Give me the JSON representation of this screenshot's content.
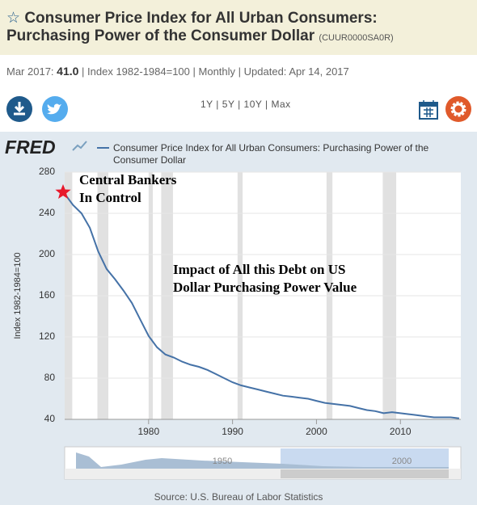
{
  "header": {
    "title": "Consumer Price Index for All Urban Consumers: Purchasing Power of the Consumer Dollar",
    "series_id": "(CUUR0000SA0R)"
  },
  "info": {
    "date": "Mar 2017:",
    "value": "41.0",
    "units": "Index 1982-1984=100",
    "frequency": "Monthly",
    "updated": "Updated: Apr 14, 2017"
  },
  "ranges": [
    "1Y",
    "5Y",
    "10Y",
    "Max"
  ],
  "chart_data": {
    "type": "line",
    "logo": "FRED",
    "ylabel": "Index 1982-1984=100",
    "x": [
      1970,
      1971,
      1972,
      1973,
      1974,
      1975,
      1976,
      1977,
      1978,
      1979,
      1980,
      1981,
      1982,
      1983,
      1984,
      1985,
      1986,
      1987,
      1988,
      1989,
      1990,
      1991,
      1992,
      1993,
      1994,
      1995,
      1996,
      1997,
      1998,
      1999,
      2000,
      2001,
      2002,
      2003,
      2004,
      2005,
      2006,
      2007,
      2008,
      2009,
      2010,
      2011,
      2012,
      2013,
      2014,
      2015,
      2016,
      2017
    ],
    "series": [
      {
        "name": "Consumer Price Index for All Urban Consumers: Purchasing Power of the Consumer Dollar",
        "color": "#4572a7",
        "values": [
          259,
          248,
          240,
          226,
          203,
          186,
          176,
          165,
          153,
          137,
          121,
          110,
          103,
          100,
          96,
          93,
          91,
          88,
          84,
          80,
          76,
          73,
          71,
          69,
          67,
          65,
          63,
          62,
          61,
          60,
          58,
          56,
          55,
          54,
          53,
          51,
          49,
          48,
          46,
          47,
          46,
          45,
          44,
          43,
          42,
          42,
          42,
          41
        ]
      }
    ],
    "xlim": [
      1970,
      2017.2
    ],
    "ylim": [
      40,
      280
    ],
    "yticks": [
      40,
      80,
      120,
      160,
      200,
      240,
      280
    ],
    "xticks": [
      1980,
      1990,
      2000,
      2010
    ],
    "grid": true,
    "recessions": [
      [
        1969.9,
        1970.9
      ],
      [
        1973.9,
        1975.2
      ],
      [
        1980.0,
        1980.5
      ],
      [
        1981.5,
        1982.9
      ],
      [
        1990.6,
        1991.2
      ],
      [
        2001.2,
        2001.9
      ],
      [
        2007.9,
        2009.5
      ]
    ],
    "annotations": [
      {
        "lines": [
          "Central Bankers",
          "In Control"
        ]
      },
      {
        "lines": [
          "Impact of All this Debt on US",
          "Dollar Purchasing Power Value"
        ]
      }
    ]
  },
  "navigator": {
    "labels": [
      "1950",
      "2000"
    ]
  },
  "source": "Source: U.S. Bureau of Labor Statistics"
}
